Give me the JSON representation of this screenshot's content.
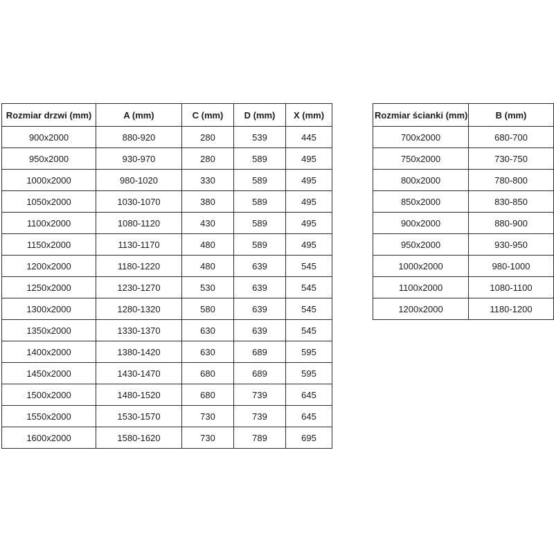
{
  "page": {
    "background_color": "#ffffff",
    "text_color": "#1a1a1a",
    "border_color": "#2b2b2b"
  },
  "door_table": {
    "headers": [
      "Rozmiar drzwi (mm)",
      "A (mm)",
      "C (mm)",
      "D (mm)",
      "X (mm)"
    ],
    "rows": [
      [
        "900x2000",
        "880-920",
        "280",
        "539",
        "445"
      ],
      [
        "950x2000",
        "930-970",
        "280",
        "589",
        "495"
      ],
      [
        "1000x2000",
        "980-1020",
        "330",
        "589",
        "495"
      ],
      [
        "1050x2000",
        "1030-1070",
        "380",
        "589",
        "495"
      ],
      [
        "1100x2000",
        "1080-1120",
        "430",
        "589",
        "495"
      ],
      [
        "1150x2000",
        "1130-1170",
        "480",
        "589",
        "495"
      ],
      [
        "1200x2000",
        "1180-1220",
        "480",
        "639",
        "545"
      ],
      [
        "1250x2000",
        "1230-1270",
        "530",
        "639",
        "545"
      ],
      [
        "1300x2000",
        "1280-1320",
        "580",
        "639",
        "545"
      ],
      [
        "1350x2000",
        "1330-1370",
        "630",
        "639",
        "545"
      ],
      [
        "1400x2000",
        "1380-1420",
        "630",
        "689",
        "595"
      ],
      [
        "1450x2000",
        "1430-1470",
        "680",
        "689",
        "595"
      ],
      [
        "1500x2000",
        "1480-1520",
        "680",
        "739",
        "645"
      ],
      [
        "1550x2000",
        "1530-1570",
        "730",
        "739",
        "645"
      ],
      [
        "1600x2000",
        "1580-1620",
        "730",
        "789",
        "695"
      ]
    ]
  },
  "wall_table": {
    "headers": [
      "Rozmiar ścianki (mm)",
      "B (mm)"
    ],
    "rows": [
      [
        "700x2000",
        "680-700"
      ],
      [
        "750x2000",
        "730-750"
      ],
      [
        "800x2000",
        "780-800"
      ],
      [
        "850x2000",
        "830-850"
      ],
      [
        "900x2000",
        "880-900"
      ],
      [
        "950x2000",
        "930-950"
      ],
      [
        "1000x2000",
        "980-1000"
      ],
      [
        "1100x2000",
        "1080-1100"
      ],
      [
        "1200x2000",
        "1180-1200"
      ]
    ]
  }
}
